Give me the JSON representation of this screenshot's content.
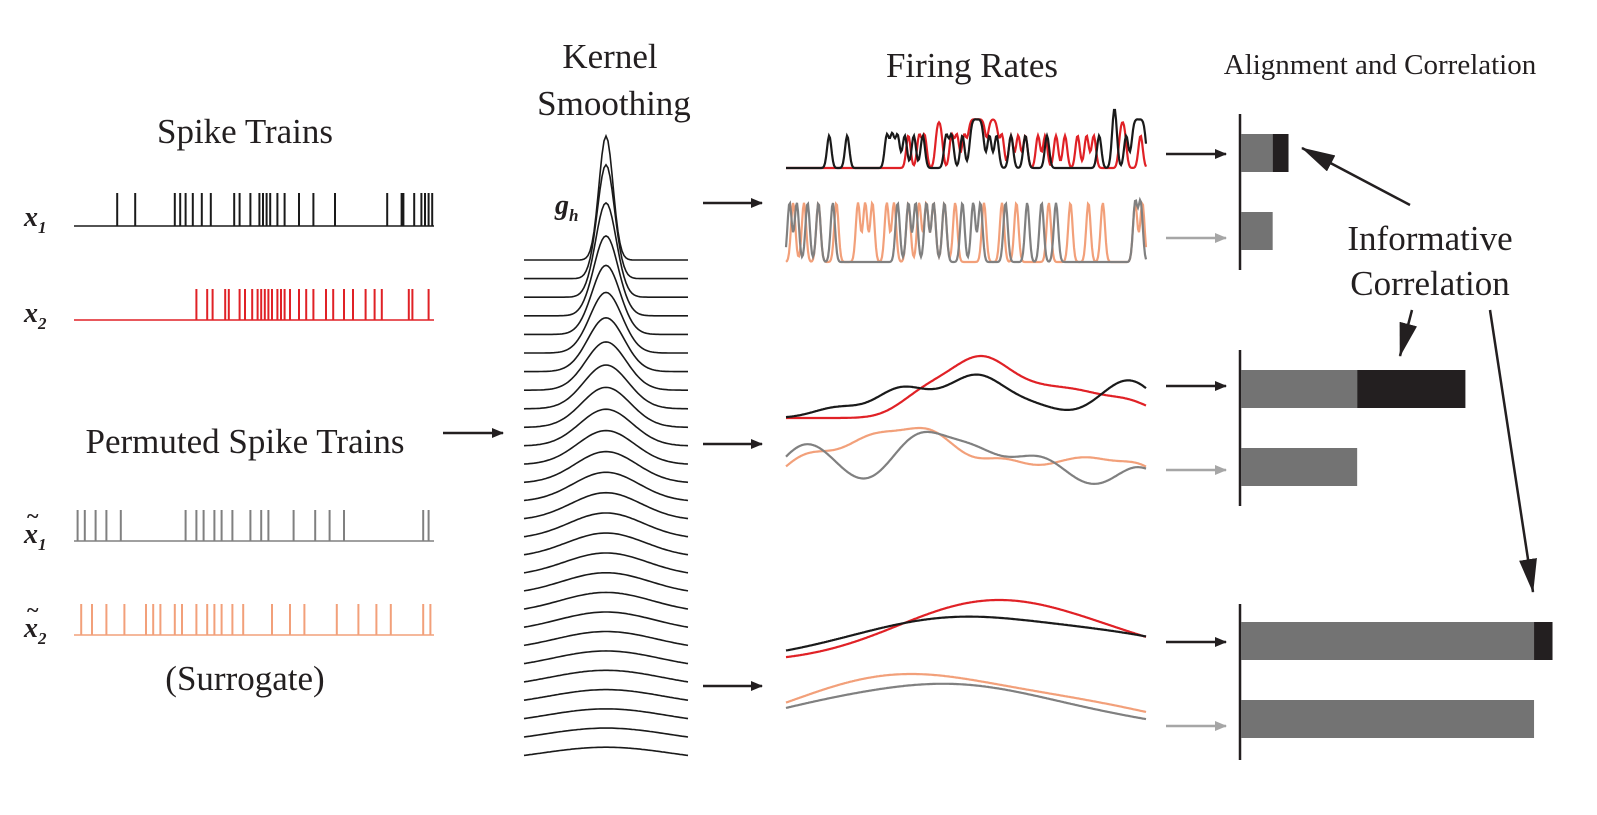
{
  "colors": {
    "black": "#1a1a1a",
    "red": "#e02126",
    "gray": "#808080",
    "salmon": "#f2a07a",
    "bar_gray": "#737373",
    "bar_dark": "#231f20",
    "arrow_gray": "#a6a6a6"
  },
  "spike_panel": {
    "title": "Spike Trains",
    "x1": {
      "symbol": "x",
      "subscript": "1",
      "spikes": [
        0.12,
        0.17,
        0.28,
        0.295,
        0.31,
        0.33,
        0.355,
        0.38,
        0.445,
        0.46,
        0.49,
        0.515,
        0.525,
        0.535,
        0.545,
        0.565,
        0.585,
        0.625,
        0.665,
        0.725,
        0.87,
        0.91,
        0.915,
        0.945,
        0.965,
        0.975,
        0.985,
        0.995
      ]
    },
    "x2": {
      "symbol": "x",
      "subscript": "2",
      "spikes": [
        0.34,
        0.37,
        0.385,
        0.42,
        0.43,
        0.46,
        0.475,
        0.495,
        0.51,
        0.52,
        0.53,
        0.54,
        0.55,
        0.565,
        0.575,
        0.585,
        0.6,
        0.625,
        0.645,
        0.665,
        0.7,
        0.72,
        0.75,
        0.775,
        0.81,
        0.835,
        0.855,
        0.93,
        0.94,
        0.985
      ]
    },
    "permuted_title": "Permuted Spike Trains",
    "x1s": {
      "symbol": "x",
      "tilde": "~",
      "subscript": "1",
      "spikes": [
        0.01,
        0.03,
        0.06,
        0.09,
        0.13,
        0.31,
        0.34,
        0.36,
        0.39,
        0.41,
        0.44,
        0.49,
        0.52,
        0.54,
        0.61,
        0.67,
        0.71,
        0.75,
        0.97,
        0.985
      ]
    },
    "x2s": {
      "symbol": "x",
      "tilde": "~",
      "subscript": "2",
      "spikes": [
        0.02,
        0.05,
        0.09,
        0.14,
        0.2,
        0.22,
        0.24,
        0.28,
        0.3,
        0.34,
        0.37,
        0.39,
        0.41,
        0.44,
        0.47,
        0.55,
        0.6,
        0.64,
        0.73,
        0.79,
        0.84,
        0.88,
        0.97,
        0.99
      ]
    },
    "surrogate_label": "(Surrogate)"
  },
  "kernel_panel": {
    "title_line1": "Kernel",
    "title_line2": "Smoothing",
    "kernel_label": "g",
    "kernel_subscript": "h",
    "num_curves": 28
  },
  "rates_panel": {
    "title": "Firing Rates",
    "rows": [
      {
        "scale": "narrow",
        "pair": "original",
        "color_a": "black",
        "color_b": "red"
      },
      {
        "scale": "narrow",
        "pair": "surrogate",
        "color_a": "gray",
        "color_b": "salmon"
      },
      {
        "scale": "medium",
        "pair": "original",
        "color_a": "black",
        "color_b": "red"
      },
      {
        "scale": "medium",
        "pair": "surrogate",
        "color_a": "gray",
        "color_b": "salmon"
      },
      {
        "scale": "wide",
        "pair": "original",
        "color_a": "black",
        "color_b": "red"
      },
      {
        "scale": "wide",
        "pair": "surrogate",
        "color_a": "gray",
        "color_b": "salmon"
      }
    ]
  },
  "correlation_panel": {
    "title": "Alignment and Correlation",
    "annotation_line1": "Informative",
    "annotation_line2": "Correlation",
    "groups": [
      {
        "scale": "narrow",
        "original": 0.18,
        "surrogate": 0.12,
        "informative_extra": 0.06
      },
      {
        "scale": "medium",
        "original": 0.85,
        "surrogate": 0.44,
        "informative_extra": 0.41
      },
      {
        "scale": "wide",
        "original": 1.18,
        "surrogate": 1.11,
        "informative_extra": 0.07
      }
    ]
  }
}
